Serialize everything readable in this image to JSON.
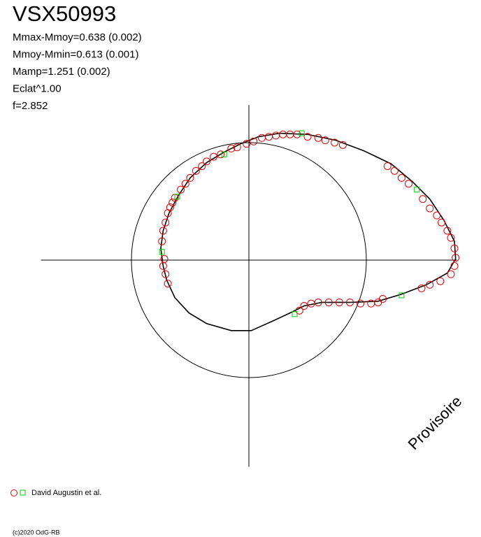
{
  "chart_data": {
    "type": "phase-loop",
    "title": "VSX50993",
    "stats": [
      "Mmax-Mmoy=0.638 (0.002)",
      "Mmoy-Mmin=0.613 (0.001)",
      "Mamp=1.251 (0.002)",
      "Eclat^1.00",
      "f=2.852"
    ],
    "watermark": "Provisoire",
    "legend_label": "David Augustin et al.",
    "footer": "(c)2020 OdG-RB",
    "xlim": [
      -1.77,
      1.77
    ],
    "ylim": [
      -1.76,
      1.32
    ],
    "reference_circle_radius": 1,
    "curve": {
      "color": "#000000",
      "x": [
        -0.7,
        -0.63,
        -0.51,
        -0.36,
        -0.15,
        0.02,
        0.2,
        0.35,
        0.47,
        0.62,
        0.86,
        1.1,
        1.3,
        1.51,
        1.69,
        1.76,
        1.75,
        1.66,
        1.54,
        1.39,
        1.21,
        0.98,
        0.74,
        0.5,
        0.26,
        0.08,
        -0.07,
        -0.21,
        -0.36,
        -0.5,
        -0.6,
        -0.68,
        -0.73,
        -0.75,
        -0.73,
        -0.7
      ],
      "y": [
        -0.17,
        -0.32,
        -0.45,
        -0.54,
        -0.6,
        -0.6,
        -0.52,
        -0.45,
        -0.39,
        -0.36,
        -0.36,
        -0.35,
        -0.29,
        -0.21,
        -0.11,
        0.01,
        0.16,
        0.34,
        0.52,
        0.67,
        0.82,
        0.93,
        1.02,
        1.07,
        1.08,
        1.05,
        0.99,
        0.92,
        0.83,
        0.7,
        0.55,
        0.4,
        0.25,
        0.1,
        -0.05,
        -0.17
      ]
    },
    "series": [
      {
        "marker": "circle",
        "color": "#e00000",
        "x": [
          -0.69,
          -0.71,
          -0.73,
          -0.72,
          -0.74,
          -0.73,
          -0.71,
          -0.69,
          -0.67,
          -0.65,
          -0.63,
          -0.58,
          -0.54,
          -0.5,
          -0.45,
          -0.4,
          -0.36,
          -0.3,
          -0.24,
          -0.15,
          -0.1,
          -0.02,
          0.04,
          0.11,
          0.17,
          0.23,
          0.29,
          0.35,
          0.41,
          0.5,
          0.59,
          0.65,
          0.73,
          0.8,
          1.18,
          1.24,
          1.3,
          1.36,
          1.48,
          1.54,
          1.6,
          1.64,
          1.69,
          1.72,
          1.75,
          1.76,
          1.75,
          1.72,
          1.63,
          1.54,
          1.47,
          0.43,
          0.47,
          0.53,
          0.59,
          0.68,
          0.77,
          0.86,
          0.95,
          1.04,
          1.1,
          1.14
        ],
        "y": [
          -0.2,
          -0.12,
          -0.05,
          0.01,
          0.16,
          0.25,
          0.32,
          0.4,
          0.45,
          0.49,
          0.53,
          0.6,
          0.65,
          0.7,
          0.76,
          0.8,
          0.84,
          0.88,
          0.9,
          0.95,
          0.96,
          0.99,
          1.01,
          1.04,
          1.05,
          1.06,
          1.07,
          1.07,
          1.07,
          1.05,
          1.04,
          1.02,
          1.0,
          0.98,
          0.8,
          0.76,
          0.7,
          0.65,
          0.52,
          0.44,
          0.38,
          0.32,
          0.25,
          0.19,
          0.1,
          0.02,
          -0.05,
          -0.12,
          -0.18,
          -0.21,
          -0.24,
          -0.43,
          -0.39,
          -0.37,
          -0.36,
          -0.36,
          -0.36,
          -0.36,
          -0.37,
          -0.37,
          -0.36,
          -0.33
        ]
      },
      {
        "marker": "square",
        "color": "#00cc00",
        "x": [
          -0.74,
          -0.61,
          -0.21,
          0.45,
          1.43,
          1.3,
          0.39
        ],
        "y": [
          0.07,
          0.54,
          0.9,
          1.08,
          0.6,
          -0.3,
          -0.46
        ]
      }
    ]
  }
}
